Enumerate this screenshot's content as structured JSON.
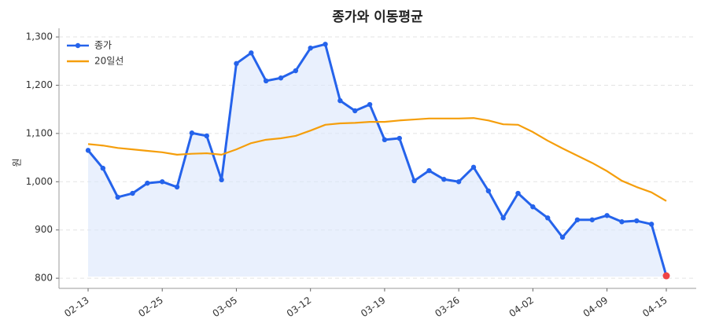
{
  "chart_data": {
    "type": "line",
    "title": "종가와 이동평균",
    "y_label": "원",
    "categories": [
      "02-13",
      null,
      null,
      null,
      null,
      "02-25",
      null,
      null,
      null,
      null,
      "03-05",
      null,
      null,
      null,
      null,
      "03-12",
      null,
      null,
      null,
      null,
      "03-19",
      null,
      null,
      null,
      null,
      "03-26",
      null,
      null,
      null,
      null,
      "04-02",
      null,
      null,
      null,
      null,
      "04-09",
      null,
      null,
      null,
      "04-15"
    ],
    "series": [
      {
        "name": "종가",
        "color": "#2563eb",
        "fill": "#dbe6fb",
        "last_color": "#ef4444",
        "values": [
          1065,
          1028,
          968,
          976,
          997,
          1000,
          989,
          1101,
          1095,
          1004,
          1245,
          1267,
          1209,
          1215,
          1230,
          1277,
          1285,
          1168,
          1147,
          1160,
          1087,
          1090,
          1002,
          1023,
          1005,
          1000,
          1030,
          981,
          925,
          976,
          948,
          925,
          885,
          921,
          921,
          930,
          917,
          919,
          912,
          805
        ]
      },
      {
        "name": "20일선",
        "color": "#f59e0b",
        "values": [
          1078,
          1075,
          1070,
          1067,
          1064,
          1061,
          1056,
          1058,
          1059,
          1056,
          1067,
          1080,
          1087,
          1090,
          1095,
          1106,
          1118,
          1121,
          1122,
          1124,
          1124,
          1127,
          1129,
          1131,
          1131,
          1131,
          1132,
          1127,
          1119,
          1118,
          1103,
          1085,
          1069,
          1054,
          1039,
          1022,
          1002,
          989,
          978,
          960
        ]
      }
    ],
    "ylim": [
      779,
      1318
    ],
    "yticks": [
      {
        "value": 800,
        "label": "800"
      },
      {
        "value": 900,
        "label": "900"
      },
      {
        "value": 1000,
        "label": "1,000"
      },
      {
        "value": 1100,
        "label": "1,100"
      },
      {
        "value": 1200,
        "label": "1,200"
      },
      {
        "value": 1300,
        "label": "1,300"
      }
    ],
    "grid": true,
    "legend": "upper-left"
  }
}
